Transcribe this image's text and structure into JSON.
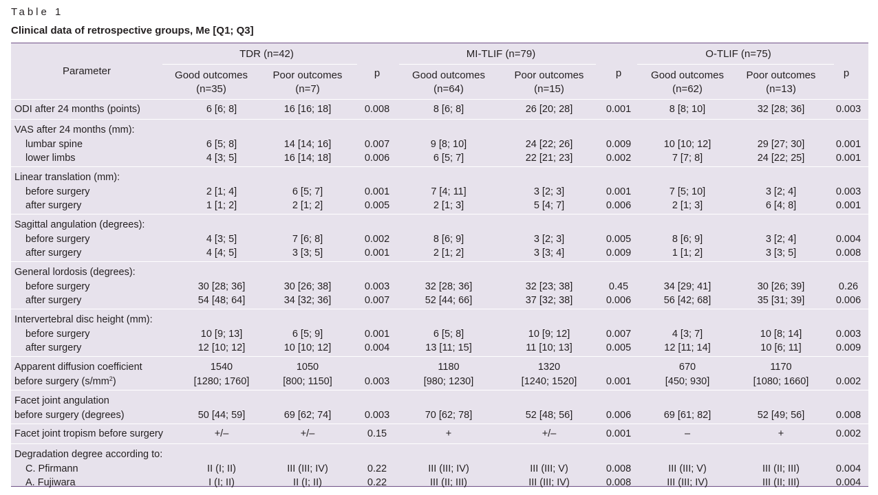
{
  "table_label": "Table 1",
  "caption": "Clinical data of retrospective groups, Me [Q1; Q3]",
  "header": {
    "parameter": "Parameter",
    "groups": [
      {
        "name": "TDR (n=42)",
        "good": "Good outcomes",
        "good_n": "(n=35)",
        "poor": "Poor outcomes",
        "poor_n": "(n=7)",
        "p": "p"
      },
      {
        "name": "MI-TLIF (n=79)",
        "good": "Good outcomes",
        "good_n": "(n=64)",
        "poor": "Poor outcomes",
        "poor_n": "(n=15)",
        "p": "p"
      },
      {
        "name": "O-TLIF (n=75)",
        "good": "Good outcomes",
        "good_n": "(n=62)",
        "poor": "Poor outcomes",
        "poor_n": "(n=13)",
        "p": "p"
      }
    ]
  },
  "rows": [
    {
      "lines": [
        {
          "label": "ODI after 24 months (points)",
          "v": [
            "6 [6; 8]",
            "16 [16; 18]",
            "0.008",
            "8 [6; 8]",
            "26 [20; 28]",
            "0.001",
            "8 [8; 10]",
            "32 [28; 36]",
            "0.003"
          ]
        }
      ]
    },
    {
      "lines": [
        {
          "label": "VAS after 24 months (mm):"
        },
        {
          "label": "lumbar spine",
          "sub": true,
          "v": [
            "6 [5; 8]",
            "14 [14; 16]",
            "0.007",
            "9 [8; 10]",
            "24 [22; 26]",
            "0.009",
            "10 [10; 12]",
            "29 [27; 30]",
            "0.001"
          ]
        },
        {
          "label": "lower limbs",
          "sub": true,
          "v": [
            "4 [3; 5]",
            "16 [14; 18]",
            "0.006",
            "6 [5; 7]",
            "22 [21; 23]",
            "0.002",
            "7 [7; 8]",
            "24 [22; 25]",
            "0.001"
          ]
        }
      ]
    },
    {
      "lines": [
        {
          "label": "Linear translation (mm):"
        },
        {
          "label": "before surgery",
          "sub": true,
          "v": [
            "2 [1; 4]",
            "6 [5; 7]",
            "0.001",
            "7 [4; 11]",
            "3 [2; 3]",
            "0.001",
            "7 [5; 10]",
            "3 [2; 4]",
            "0.003"
          ]
        },
        {
          "label": "after surgery",
          "sub": true,
          "v": [
            "1 [1; 2]",
            "2 [1; 2]",
            "0.005",
            "2 [1; 3]",
            "5 [4; 7]",
            "0.006",
            "2 [1; 3]",
            "6 [4; 8]",
            "0.001"
          ]
        }
      ]
    },
    {
      "lines": [
        {
          "label": "Sagittal angulation (degrees):"
        },
        {
          "label": "before surgery",
          "sub": true,
          "v": [
            "4 [3; 5]",
            "7 [6; 8]",
            "0.002",
            "8 [6; 9]",
            "3 [2; 3]",
            "0.005",
            "8 [6; 9]",
            "3 [2; 4]",
            "0.004"
          ]
        },
        {
          "label": "after surgery",
          "sub": true,
          "v": [
            "4 [4; 5]",
            "3 [3; 5]",
            "0.001",
            "2 [1; 2]",
            "3 [3; 4]",
            "0.009",
            "1 [1; 2]",
            "3 [3; 5]",
            "0.008"
          ]
        }
      ]
    },
    {
      "lines": [
        {
          "label": "General lordosis (degrees):"
        },
        {
          "label": "before surgery",
          "sub": true,
          "v": [
            "30 [28; 36]",
            "30 [26; 38]",
            "0.003",
            "32 [28; 36]",
            "32 [23; 38]",
            "0.45",
            "34 [29; 41]",
            "30 [26; 39]",
            "0.26"
          ]
        },
        {
          "label": "after surgery",
          "sub": true,
          "v": [
            "54 [48; 64]",
            "34 [32; 36]",
            "0.007",
            "52 [44; 66]",
            "37 [32; 38]",
            "0.006",
            "56 [42; 68]",
            "35 [31; 39]",
            "0.006"
          ]
        }
      ]
    },
    {
      "lines": [
        {
          "label": "Intervertebral disc height (mm):"
        },
        {
          "label": "before surgery",
          "sub": true,
          "v": [
            "10 [9; 13]",
            "6 [5; 9]",
            "0.001",
            "6 [5; 8]",
            "10 [9; 12]",
            "0.007",
            "4 [3; 7]",
            "10 [8; 14]",
            "0.003"
          ]
        },
        {
          "label": "after surgery",
          "sub": true,
          "v": [
            "12 [10; 12]",
            "10 [10; 12]",
            "0.004",
            "13 [11; 15]",
            "11 [10; 13]",
            "0.005",
            "12 [11; 14]",
            "10 [6; 11]",
            "0.009"
          ]
        }
      ]
    },
    {
      "lines": [
        {
          "label": "Apparent diffusion coefficient",
          "v": [
            "1540",
            "1050",
            "",
            "1180",
            "1320",
            "",
            "670",
            "1170",
            ""
          ]
        },
        {
          "label": "before surgery (s/mm",
          "sup": "2",
          "label_end": ")",
          "v": [
            "[1280; 1760]",
            "[800; 1150]",
            "0.003",
            "[980; 1230]",
            "[1240; 1520]",
            "0.001",
            "[450; 930]",
            "[1080; 1660]",
            "0.002"
          ]
        }
      ]
    },
    {
      "lines": [
        {
          "label": "Facet joint angulation"
        },
        {
          "label": "before surgery (degrees)",
          "v": [
            "50 [44; 59]",
            "69 [62; 74]",
            "0.003",
            "70 [62; 78]",
            "52 [48; 56]",
            "0.006",
            "69 [61; 82]",
            "52 [49; 56]",
            "0.008"
          ]
        }
      ]
    },
    {
      "lines": [
        {
          "label": "Facet joint tropism before surgery",
          "v": [
            "+/–",
            "+/–",
            "0.15",
            "+",
            "+/–",
            "0.001",
            "–",
            "+",
            "0.002"
          ]
        }
      ]
    },
    {
      "lines": [
        {
          "label": "Degradation degree according to:"
        },
        {
          "label": "C. Pfirmann",
          "sub": true,
          "v": [
            "II (I; II)",
            "III (III; IV)",
            "0.22",
            "III (III; IV)",
            "III (III; V)",
            "0.008",
            "III (III; V)",
            "III (II; III)",
            "0.004"
          ]
        },
        {
          "label": "A. Fujiwara",
          "sub": true,
          "v": [
            "I (I; II)",
            "II (I; II)",
            "0.22",
            "III (II; III)",
            "III (III; IV)",
            "0.008",
            "III (III; IV)",
            "III (II; III)",
            "0.004"
          ]
        }
      ]
    }
  ]
}
